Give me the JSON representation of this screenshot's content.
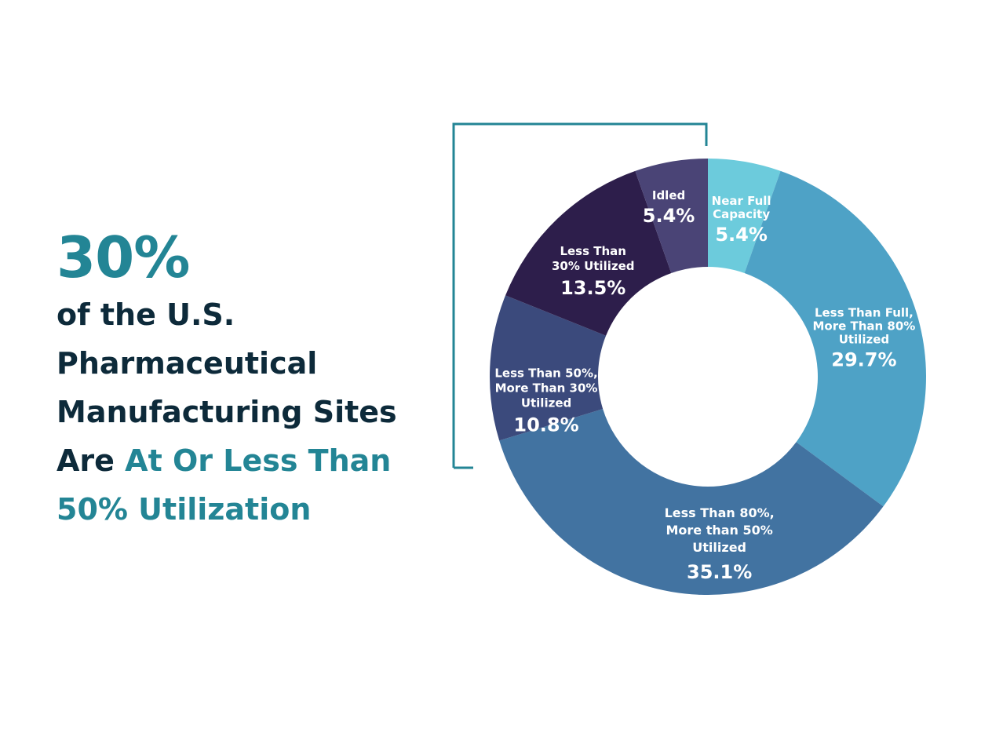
{
  "headline": {
    "stat": "30%",
    "line1": "of the U.S.",
    "line2": "Pharmaceutical",
    "line3": "Manufacturing Sites",
    "line4_dark": "Are",
    "line4_accent": "At Or Less Than",
    "line5": "50% Utilization"
  },
  "colors": {
    "accent": "#238595",
    "text_dark": "#0d2a3a",
    "bracket": "#238595"
  },
  "chart_data": {
    "type": "pie",
    "donut": true,
    "categories": [
      "Near Full Capacity",
      "Less Than Full, More Than 80% Utilized",
      "Less Than 80%, More than 50% Utilized",
      "Less Than 50%, More Than 30% Utilized",
      "Less Than 30% Utilized",
      "Idled"
    ],
    "values": [
      5.4,
      29.7,
      35.1,
      10.8,
      13.5,
      5.4
    ],
    "value_labels": [
      "5.4%",
      "29.7%",
      "35.1%",
      "10.8%",
      "13.5%",
      "5.4%"
    ],
    "label_lines": [
      [
        "Near Full",
        "Capacity"
      ],
      [
        "Less Than Full,",
        "More Than 80%",
        "Utilized"
      ],
      [
        "Less Than 80%,",
        "More than 50%",
        "Utilized"
      ],
      [
        "Less Than 50%,",
        "More Than 30%",
        "Utilized"
      ],
      [
        "Less Than",
        "30% Utilized"
      ],
      [
        "Idled"
      ]
    ],
    "colors": [
      "#6ccbdc",
      "#4ea2c6",
      "#4273a1",
      "#3b4a7c",
      "#2d1e4b",
      "#4a4476"
    ]
  }
}
